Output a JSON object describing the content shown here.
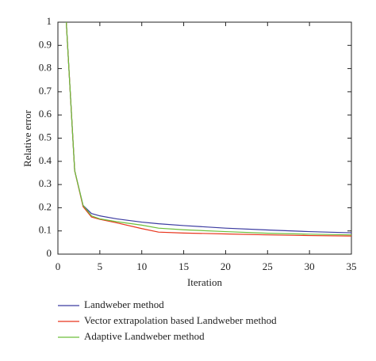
{
  "chart_data": {
    "type": "line",
    "x_label": "Iteration",
    "y_label": "Relative error",
    "x": [
      1,
      2,
      3,
      4,
      5,
      7,
      10,
      12,
      15,
      20,
      25,
      30,
      35
    ],
    "series": [
      {
        "name": "Landweber method",
        "color": "#3a3aa0",
        "values": [
          1,
          0.36,
          0.21,
          0.175,
          0.165,
          0.152,
          0.138,
          0.131,
          0.123,
          0.112,
          0.104,
          0.097,
          0.092
        ]
      },
      {
        "name": "Vector extrapolation based Landweber method",
        "color": "#e8341c",
        "values": [
          1,
          0.36,
          0.205,
          0.16,
          0.15,
          0.135,
          0.11,
          0.095,
          0.091,
          0.087,
          0.083,
          0.08,
          0.078
        ]
      },
      {
        "name": "Adaptive Landweber method",
        "color": "#6cbf3a",
        "values": [
          1,
          0.36,
          0.21,
          0.165,
          0.152,
          0.14,
          0.125,
          0.112,
          0.105,
          0.097,
          0.09,
          0.086,
          0.083
        ]
      }
    ],
    "xlim": [
      0,
      35
    ],
    "ylim": [
      0,
      1
    ],
    "xticks": [
      0,
      5,
      10,
      15,
      20,
      25,
      30,
      35
    ],
    "yticks": [
      0,
      0.1,
      0.2,
      0.3,
      0.4,
      0.5,
      0.6,
      0.7,
      0.8,
      0.9,
      1
    ],
    "grid": false,
    "legend": "bottom"
  }
}
